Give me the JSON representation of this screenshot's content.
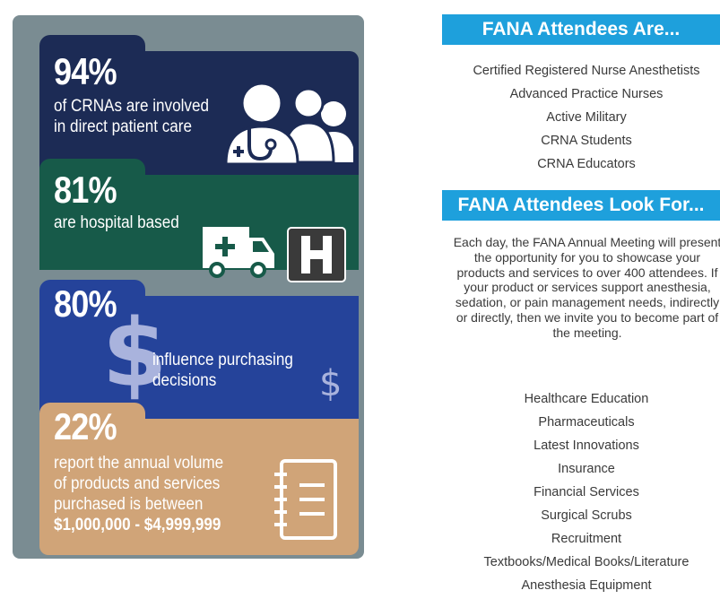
{
  "infographic": {
    "stats": [
      {
        "percent": "94%",
        "description_lines": [
          "of CRNAs are involved",
          "in direct patient care"
        ],
        "icon": "medical-staff-icon"
      },
      {
        "percent": "81%",
        "description_lines": [
          "are hospital based"
        ],
        "icon": "ambulance-and-hospital-icon"
      },
      {
        "percent": "80%",
        "description_lines": [
          "influence purchasing",
          "decisions"
        ],
        "icon": "dollar-sign-icon"
      },
      {
        "percent": "22%",
        "description_lines": [
          "report the annual volume",
          "of products and services",
          "purchased is between",
          "$1,000,000 - $4,999,999"
        ],
        "icon": "notebook-icon"
      }
    ],
    "colors": {
      "frame": "#7a8c92",
      "navy": "#1c2b55",
      "green": "#175a49",
      "blue": "#25439a",
      "tan": "#d0a478"
    }
  },
  "attendees_are": {
    "heading": "FANA  Attendees Are...",
    "items": [
      "Certified Registered Nurse Anesthetists",
      "Advanced Practice Nurses",
      "Active Military",
      "CRNA Students",
      "CRNA Educators"
    ]
  },
  "attendees_look_for": {
    "heading": "FANA  Attendees Look For...",
    "paragraph": "Each day, the FANA Annual Meeting will present the opportunity for you to showcase your products and services to over 400 attendees. If your product or services support anesthesia, sedation, or pain management needs, indirectly or directly, then we invite you to become part of the meeting.",
    "items": [
      "Healthcare Education",
      "Pharmaceuticals",
      "Latest Innovations",
      "Insurance",
      "Financial Services",
      "Surgical Scrubs",
      "Recruitment",
      "Textbooks/Medical Books/Literature",
      "Anesthesia Equipment"
    ]
  },
  "accent_color": "#1ea0dc"
}
